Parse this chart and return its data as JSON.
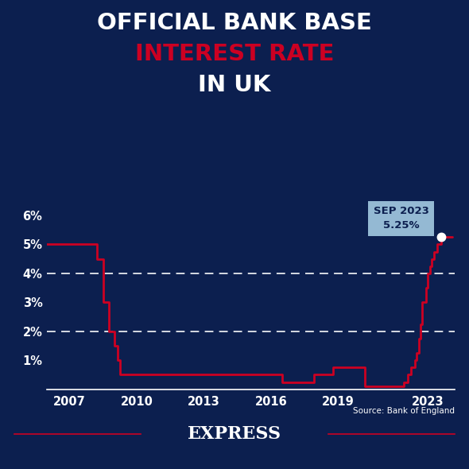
{
  "title_line1": "OFFICIAL BANK BASE",
  "title_line2": "INTEREST RATE",
  "bg_color": "#0c1f4f",
  "title_color_1": "#ffffff",
  "title_color_2": "#cc0022",
  "title_color_3": "#ffffff",
  "line_color": "#cc0022",
  "grid_color": "#ffffff",
  "axis_text_color": "#ffffff",
  "annotation_bg": "#a8d0e6",
  "source_text": "Source: Bank of England",
  "brand_text": "EXPRESS",
  "ylim": [
    0,
    6.8
  ],
  "yticks": [
    1,
    2,
    3,
    4,
    5,
    6
  ],
  "ytick_labels": [
    "1%",
    "2%",
    "3%",
    "4%",
    "5%",
    "6%"
  ],
  "ygrid_at": [
    2,
    4
  ],
  "xlim_start": 2006.0,
  "xlim_end": 2024.2,
  "xtick_positions": [
    2007,
    2010,
    2013,
    2016,
    2019,
    2023
  ],
  "rate_data": [
    [
      2006.0,
      5.0
    ],
    [
      2007.75,
      5.0
    ],
    [
      2007.75,
      5.0
    ],
    [
      2008.25,
      5.0
    ],
    [
      2008.25,
      4.5
    ],
    [
      2008.5,
      4.5
    ],
    [
      2008.5,
      3.0
    ],
    [
      2008.75,
      3.0
    ],
    [
      2008.75,
      2.0
    ],
    [
      2009.0,
      2.0
    ],
    [
      2009.0,
      1.5
    ],
    [
      2009.17,
      1.5
    ],
    [
      2009.17,
      1.0
    ],
    [
      2009.25,
      1.0
    ],
    [
      2009.25,
      0.5
    ],
    [
      2009.33,
      0.5
    ],
    [
      2016.5,
      0.5
    ],
    [
      2016.5,
      0.25
    ],
    [
      2017.92,
      0.25
    ],
    [
      2017.92,
      0.5
    ],
    [
      2018.75,
      0.5
    ],
    [
      2018.75,
      0.75
    ],
    [
      2020.17,
      0.75
    ],
    [
      2020.17,
      0.1
    ],
    [
      2021.92,
      0.1
    ],
    [
      2021.92,
      0.25
    ],
    [
      2022.08,
      0.25
    ],
    [
      2022.08,
      0.5
    ],
    [
      2022.25,
      0.5
    ],
    [
      2022.25,
      0.75
    ],
    [
      2022.42,
      0.75
    ],
    [
      2022.42,
      1.0
    ],
    [
      2022.5,
      1.0
    ],
    [
      2022.5,
      1.25
    ],
    [
      2022.58,
      1.25
    ],
    [
      2022.58,
      1.75
    ],
    [
      2022.67,
      1.75
    ],
    [
      2022.67,
      2.25
    ],
    [
      2022.75,
      2.25
    ],
    [
      2022.75,
      3.0
    ],
    [
      2022.92,
      3.0
    ],
    [
      2022.92,
      3.5
    ],
    [
      2023.0,
      3.5
    ],
    [
      2023.0,
      4.0
    ],
    [
      2023.08,
      4.0
    ],
    [
      2023.08,
      4.25
    ],
    [
      2023.17,
      4.25
    ],
    [
      2023.17,
      4.5
    ],
    [
      2023.25,
      4.5
    ],
    [
      2023.25,
      4.75
    ],
    [
      2023.42,
      4.75
    ],
    [
      2023.42,
      5.0
    ],
    [
      2023.58,
      5.0
    ],
    [
      2023.58,
      5.25
    ],
    [
      2024.1,
      5.25
    ]
  ],
  "endpoint_x": 2023.58,
  "endpoint_y": 5.25
}
